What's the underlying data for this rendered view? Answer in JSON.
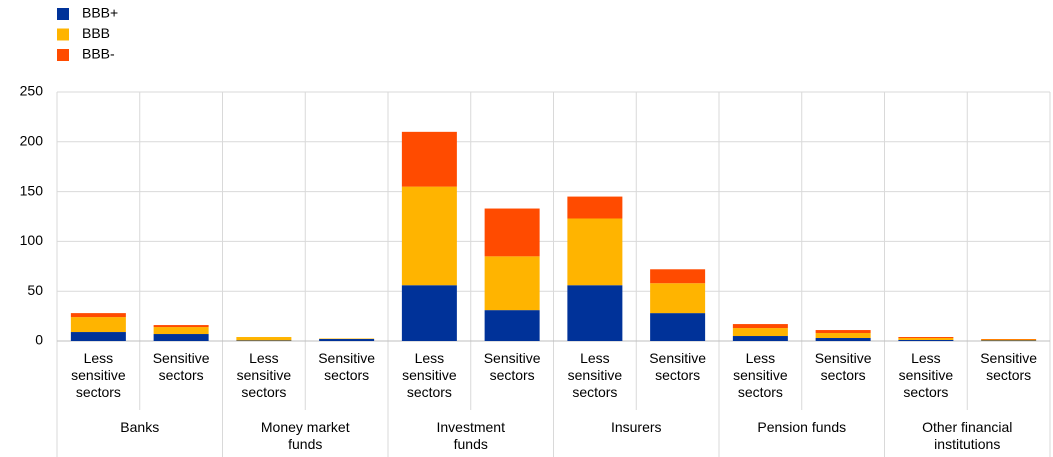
{
  "chart_data": {
    "type": "stacked_bar",
    "categories": [
      "Less sensitive sectors",
      "Sensitive sectors",
      "Less sensitive sectors",
      "Sensitive sectors",
      "Less sensitive sectors",
      "Sensitive sectors",
      "Less sensitive sectors",
      "Sensitive sectors",
      "Less sensitive sectors",
      "Sensitive sectors",
      "Less sensitive sectors",
      "Sensitive sectors"
    ],
    "groups": [
      "Banks",
      "Money market funds",
      "Investment funds",
      "Insurers",
      "Pension funds",
      "Other financial institutions"
    ],
    "series": [
      {
        "name": "BBB+",
        "color": "#003299",
        "values": [
          9,
          7,
          0.5,
          2,
          56,
          31,
          56,
          28,
          5,
          3,
          1,
          0.5
        ]
      },
      {
        "name": "BBB",
        "color": "#ffb400",
        "values": [
          15,
          7,
          3.5,
          0.5,
          99,
          54,
          67,
          30,
          8,
          5,
          2,
          1
        ]
      },
      {
        "name": "BBB-",
        "color": "#ff4b00",
        "values": [
          4,
          2,
          0,
          0,
          55,
          48,
          22,
          14,
          4,
          3,
          1,
          0.5
        ]
      }
    ],
    "ylim": [
      0,
      250
    ],
    "yticks": [
      0,
      50,
      100,
      150,
      200,
      250
    ],
    "grid": true,
    "legend": "top-left"
  }
}
